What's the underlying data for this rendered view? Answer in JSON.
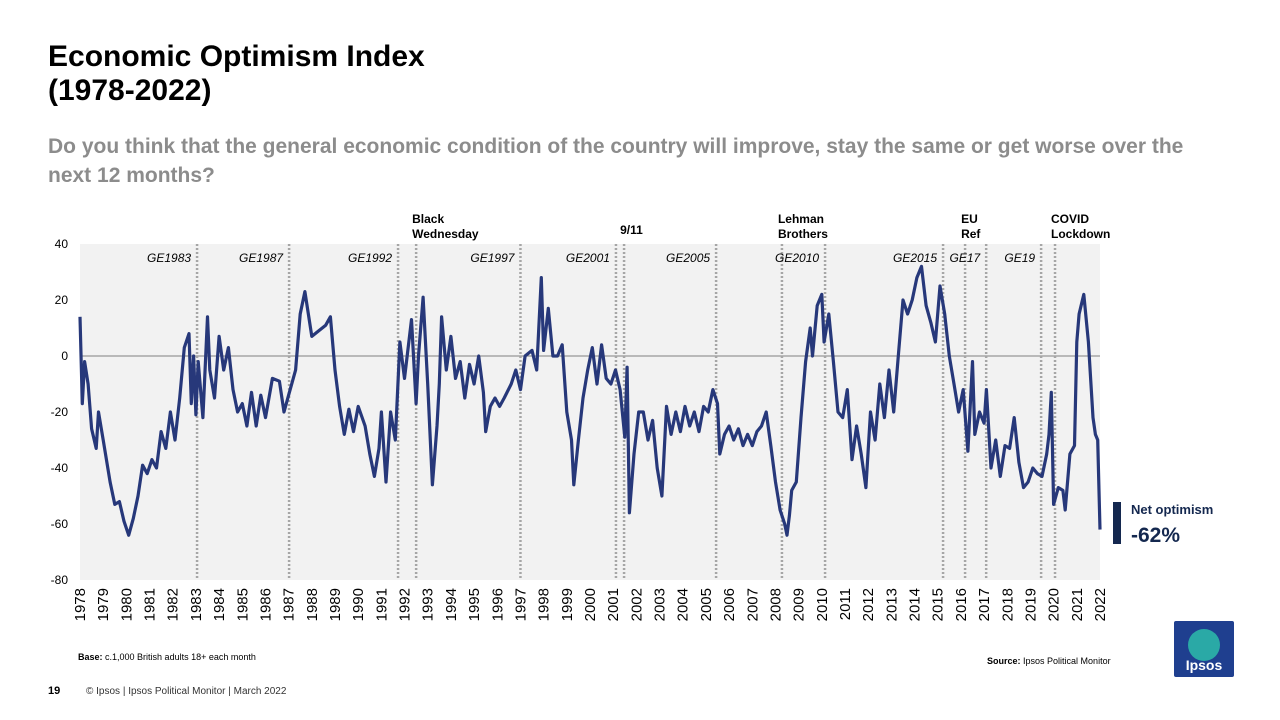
{
  "header": {
    "title": [
      "Economic Optimism Index",
      "(1978-2022)"
    ],
    "subtitle": "Do you think that the general economic condition of the country will improve, stay the same or get worse over the next 12 months?"
  },
  "chart_data": {
    "type": "line",
    "series": [
      {
        "name": "Net optimism",
        "color": "#27387a",
        "x": [
          1978.0,
          1978.1,
          1978.2,
          1978.35,
          1978.5,
          1978.7,
          1978.8,
          1979.0,
          1979.3,
          1979.5,
          1979.7,
          1979.9,
          1980.1,
          1980.3,
          1980.5,
          1980.7,
          1980.9,
          1981.1,
          1981.3,
          1981.5,
          1981.7,
          1981.9,
          1982.1,
          1982.3,
          1982.5,
          1982.7,
          1982.8,
          1982.9,
          1983.0,
          1983.1,
          1983.3,
          1983.5,
          1983.6,
          1983.8,
          1984.0,
          1984.2,
          1984.4,
          1984.6,
          1984.8,
          1985.0,
          1985.2,
          1985.4,
          1985.6,
          1985.8,
          1986.0,
          1986.3,
          1986.6,
          1986.8,
          1987.0,
          1987.3,
          1987.5,
          1987.7,
          1988.0,
          1988.3,
          1988.6,
          1988.8,
          1989.0,
          1989.2,
          1989.4,
          1989.6,
          1989.8,
          1990.0,
          1990.3,
          1990.5,
          1990.7,
          1990.9,
          1991.0,
          1991.2,
          1991.4,
          1991.6,
          1991.8,
          1992.0,
          1992.3,
          1992.5,
          1992.6,
          1992.8,
          1993.0,
          1993.2,
          1993.4,
          1993.5,
          1993.6,
          1993.8,
          1994.0,
          1994.2,
          1994.4,
          1994.6,
          1994.8,
          1995.0,
          1995.2,
          1995.4,
          1995.5,
          1995.7,
          1995.9,
          1996.1,
          1996.3,
          1996.6,
          1996.8,
          1997.0,
          1997.2,
          1997.5,
          1997.7,
          1997.9,
          1998.0,
          1998.2,
          1998.4,
          1998.6,
          1998.8,
          1999.0,
          1999.2,
          1999.3,
          1999.5,
          1999.7,
          1999.9,
          2000.1,
          2000.3,
          2000.5,
          2000.7,
          2000.9,
          2001.1,
          2001.3,
          2001.5,
          2001.6,
          2001.7,
          2001.9,
          2002.1,
          2002.3,
          2002.5,
          2002.7,
          2002.9,
          2003.1,
          2003.3,
          2003.5,
          2003.7,
          2003.9,
          2004.1,
          2004.3,
          2004.5,
          2004.7,
          2004.9,
          2005.1,
          2005.3,
          2005.5,
          2005.6,
          2005.8,
          2006.0,
          2006.2,
          2006.4,
          2006.6,
          2006.8,
          2007.0,
          2007.2,
          2007.4,
          2007.6,
          2007.8,
          2008.0,
          2008.2,
          2008.4,
          2008.5,
          2008.6,
          2008.7,
          2008.9,
          2009.1,
          2009.3,
          2009.5,
          2009.6,
          2009.8,
          2010.0,
          2010.1,
          2010.3,
          2010.5,
          2010.7,
          2010.9,
          2011.1,
          2011.3,
          2011.5,
          2011.7,
          2011.9,
          2012.1,
          2012.3,
          2012.5,
          2012.7,
          2012.9,
          2013.1,
          2013.3,
          2013.5,
          2013.7,
          2013.9,
          2014.1,
          2014.3,
          2014.5,
          2014.7,
          2014.9,
          2015.1,
          2015.3,
          2015.5,
          2015.7,
          2015.9,
          2016.1,
          2016.3,
          2016.5,
          2016.6,
          2016.8,
          2017.0,
          2017.1,
          2017.3,
          2017.5,
          2017.7,
          2017.9,
          2018.1,
          2018.3,
          2018.5,
          2018.7,
          2018.9,
          2019.1,
          2019.3,
          2019.5,
          2019.7,
          2019.8,
          2019.9,
          2020.0,
          2020.2,
          2020.4,
          2020.5,
          2020.7,
          2020.9,
          2021.0,
          2021.1,
          2021.3,
          2021.5,
          2021.7,
          2021.8,
          2021.9,
          2022.0
        ],
        "values": [
          14,
          -17,
          -2,
          -10,
          -26,
          -33,
          -20,
          -30,
          -45,
          -53,
          -52,
          -59,
          -64,
          -58,
          -50,
          -39,
          -42,
          -37,
          -40,
          -27,
          -33,
          -20,
          -30,
          -15,
          3,
          8,
          -17,
          0,
          -21,
          -2,
          -22,
          14,
          -5,
          -15,
          7,
          -5,
          3,
          -12,
          -20,
          -17,
          -25,
          -13,
          -25,
          -14,
          -22,
          -8,
          -9,
          -20,
          -14,
          -5,
          15,
          23,
          7,
          9,
          11,
          14,
          -5,
          -18,
          -28,
          -19,
          -27,
          -18,
          -25,
          -35,
          -43,
          -33,
          -20,
          -45,
          -20,
          -30,
          5,
          -8,
          13,
          -17,
          0,
          21,
          -10,
          -46,
          -25,
          -10,
          14,
          -5,
          7,
          -8,
          -2,
          -15,
          -3,
          -10,
          0,
          -13,
          -27,
          -18,
          -15,
          -18,
          -15,
          -10,
          -5,
          -12,
          0,
          2,
          -5,
          28,
          2,
          17,
          0,
          0,
          4,
          -20,
          -30,
          -46,
          -30,
          -15,
          -5,
          3,
          -10,
          4,
          -8,
          -10,
          -5,
          -12,
          -29,
          -4,
          -56,
          -35,
          -20,
          -20,
          -30,
          -23,
          -40,
          -50,
          -18,
          -28,
          -20,
          -27,
          -18,
          -25,
          -20,
          -27,
          -18,
          -20,
          -12,
          -17,
          -35,
          -28,
          -25,
          -30,
          -26,
          -32,
          -28,
          -32,
          -27,
          -25,
          -20,
          -32,
          -45,
          -55,
          -60,
          -64,
          -57,
          -48,
          -45,
          -22,
          -2,
          10,
          0,
          18,
          22,
          5,
          15,
          -2,
          -20,
          -22,
          -12,
          -37,
          -25,
          -35,
          -47,
          -20,
          -30,
          -10,
          -22,
          -5,
          -20,
          0,
          20,
          15,
          20,
          28,
          32,
          18,
          12,
          5,
          25,
          15,
          0,
          -10,
          -20,
          -12,
          -34,
          -2,
          -28,
          -20,
          -24,
          -12,
          -40,
          -30,
          -43,
          -32,
          -33,
          -22,
          -38,
          -47,
          -45,
          -40,
          -42,
          -43,
          -35,
          -28,
          -13,
          -53,
          -47,
          -48,
          -55,
          -35,
          -32,
          5,
          15,
          22,
          5,
          -22,
          -28,
          -30,
          -62
        ]
      }
    ],
    "xlim": [
      1978,
      2022
    ],
    "xticks": [
      1978,
      1979,
      1980,
      1981,
      1982,
      1983,
      1984,
      1985,
      1986,
      1987,
      1988,
      1989,
      1990,
      1991,
      1992,
      1993,
      1994,
      1995,
      1996,
      1997,
      1998,
      1999,
      2000,
      2001,
      2002,
      2003,
      2004,
      2005,
      2006,
      2007,
      2008,
      2009,
      2010,
      2011,
      2012,
      2013,
      2014,
      2015,
      2016,
      2017,
      2018,
      2019,
      2020,
      2021,
      2022
    ],
    "ylim": [
      -80,
      40
    ],
    "yticks": [
      -80,
      -60,
      -40,
      -20,
      0,
      20,
      40
    ],
    "grid": false,
    "events": [
      {
        "x": 1983.05,
        "label": [
          "GE1983"
        ]
      },
      {
        "x": 1987.02,
        "label": [
          "GE1987"
        ]
      },
      {
        "x": 1991.72,
        "label": [
          "GE1992"
        ]
      },
      {
        "x": 1992.5,
        "label": [
          "Black",
          "Wednesday"
        ]
      },
      {
        "x": 1997.0,
        "label": [
          "GE1997"
        ]
      },
      {
        "x": 2001.12,
        "label": [
          "GE2001"
        ]
      },
      {
        "x": 2001.47,
        "label": [
          "9/11"
        ]
      },
      {
        "x": 2005.44,
        "label": [
          "GE2005"
        ]
      },
      {
        "x": 2008.28,
        "label": [
          "Lehman",
          "Brothers"
        ]
      },
      {
        "x": 2010.14,
        "label": [
          "GE2010"
        ]
      },
      {
        "x": 2015.23,
        "label": [
          "GE2015"
        ]
      },
      {
        "x": 2016.18,
        "label": [
          "EU",
          "Ref"
        ]
      },
      {
        "x": 2017.09,
        "label": [
          "GE17"
        ]
      },
      {
        "x": 2019.46,
        "label": [
          "GE19"
        ]
      },
      {
        "x": 2020.06,
        "label": [
          "COVID",
          "Lockdown"
        ]
      }
    ],
    "callout": {
      "title": "Net optimism",
      "text": "-62%"
    }
  },
  "footer": {
    "base_label": "Base:",
    "base": "c.1,000 British adults 18+ each month",
    "source_label": "Source:",
    "source": "Ipsos  Political Monitor",
    "page": "19",
    "copyright": "© Ipsos | Ipsos Political Monitor | March 2022",
    "logo": "Ipsos"
  }
}
